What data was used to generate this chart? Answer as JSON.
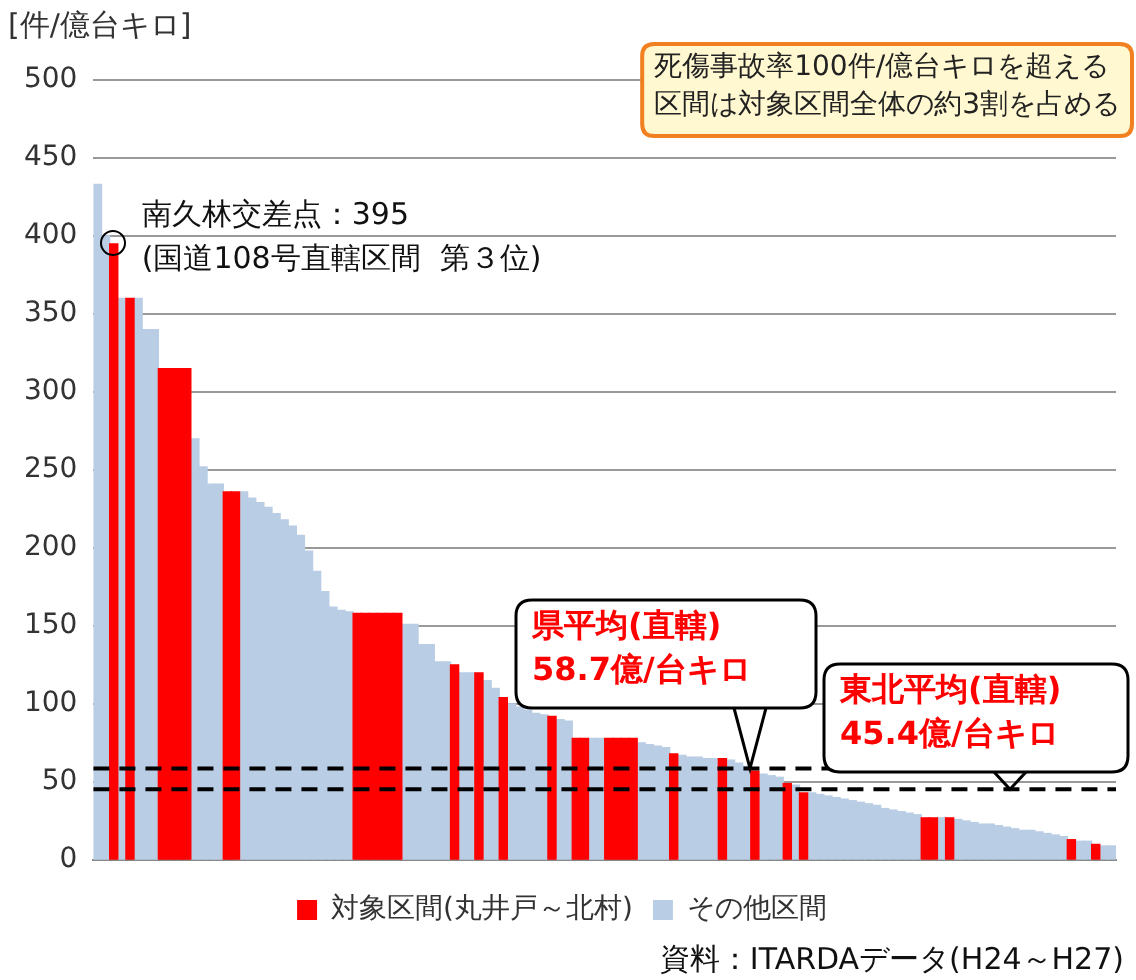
{
  "chart_data": {
    "type": "bar",
    "stacked": true,
    "ylabel": "[件/億台キロ]",
    "categories": [
      null,
      null,
      null,
      null,
      null,
      null,
      null,
      null,
      null,
      null,
      null,
      null,
      null,
      null,
      null,
      null,
      null,
      null,
      null,
      null,
      null,
      null,
      null,
      null,
      null,
      null,
      null,
      null,
      null,
      null,
      null,
      null,
      null,
      null,
      null,
      null,
      null,
      null,
      null,
      null,
      null,
      null,
      null,
      null,
      null,
      null,
      null,
      null,
      null,
      null,
      null,
      null,
      null,
      null,
      null,
      null,
      null,
      null,
      null,
      null,
      null,
      null,
      null,
      null,
      null,
      null,
      null,
      null,
      null,
      null,
      null,
      null,
      null,
      null,
      null,
      null,
      null,
      null,
      null,
      null,
      null,
      null,
      null,
      null,
      null,
      null,
      null,
      null,
      null,
      null,
      null,
      null,
      null,
      null,
      null,
      null,
      null,
      null,
      null,
      null,
      null,
      null,
      null,
      null,
      null,
      null,
      null,
      null,
      null,
      null,
      null,
      null,
      null,
      null,
      null,
      null,
      null,
      null,
      null,
      null,
      null,
      null,
      null,
      null,
      null,
      null
    ],
    "series": [
      {
        "name": "対象区間(丸井戸～北村)",
        "color": "#ff0000",
        "values": [
          null,
          null,
          395,
          null,
          360,
          null,
          null,
          null,
          315,
          315,
          315,
          315,
          null,
          null,
          null,
          null,
          236,
          236,
          null,
          null,
          null,
          null,
          null,
          null,
          null,
          null,
          null,
          null,
          null,
          null,
          null,
          null,
          158,
          158,
          158,
          158,
          158,
          158,
          null,
          null,
          null,
          null,
          null,
          null,
          125,
          null,
          null,
          120,
          null,
          null,
          104,
          null,
          null,
          null,
          null,
          null,
          92,
          null,
          null,
          78,
          78,
          null,
          null,
          78,
          78,
          78,
          78,
          null,
          null,
          null,
          null,
          68,
          null,
          null,
          null,
          null,
          null,
          65,
          null,
          null,
          null,
          57,
          null,
          null,
          null,
          49,
          null,
          43,
          null,
          null,
          null,
          null,
          null,
          null,
          null,
          null,
          null,
          null,
          null,
          null,
          null,
          null,
          27,
          27,
          null,
          27,
          null,
          null,
          null,
          null,
          null,
          null,
          null,
          null,
          null,
          null,
          null,
          null,
          null,
          null,
          13,
          null,
          null,
          10,
          null,
          null
        ]
      },
      {
        "name": "その他区間",
        "color": "#b9cde4",
        "values": [
          433,
          400,
          null,
          360,
          null,
          360,
          340,
          340,
          null,
          null,
          null,
          null,
          270,
          252,
          241,
          241,
          null,
          null,
          236,
          232,
          229,
          226,
          222,
          218,
          214,
          208,
          198,
          185,
          172,
          162,
          160,
          159,
          null,
          null,
          null,
          null,
          null,
          null,
          151,
          151,
          138,
          138,
          127,
          127,
          null,
          120,
          120,
          null,
          115,
          110,
          null,
          100,
          98,
          96,
          94,
          93,
          null,
          90,
          89,
          null,
          null,
          78,
          78,
          null,
          null,
          null,
          null,
          75,
          74,
          73,
          72,
          null,
          67,
          66,
          66,
          65,
          65,
          null,
          64,
          62,
          60,
          null,
          55,
          54,
          53,
          null,
          48,
          null,
          43,
          42,
          41,
          40,
          39,
          38,
          37,
          36,
          35,
          33,
          32,
          31,
          30,
          29,
          null,
          null,
          27,
          null,
          26,
          25,
          24,
          23,
          23,
          22,
          21,
          20,
          19,
          19,
          18,
          17,
          16,
          15,
          null,
          12,
          12,
          null,
          9,
          9
        ]
      }
    ],
    "ylim": [
      0,
      500
    ],
    "yticks": [
      0,
      50,
      100,
      150,
      200,
      250,
      300,
      350,
      400,
      450,
      500
    ],
    "grid": "y",
    "tick_labels": "y",
    "legend": "bottom",
    "ref_lines": [
      {
        "axis": "y",
        "value": 58.7,
        "label": "県平均(直轄)\n58.7億/台キロ",
        "line_style": "dashed",
        "color": "#000000"
      },
      {
        "axis": "y",
        "value": 45.4,
        "label": "東北平均(直轄)\n45.4億/台キロ",
        "line_style": "dashed",
        "color": "#000000"
      }
    ],
    "annotations": [
      "死傷事故率100件/億台キロを超える区間は対象区間全体の約3割を占める",
      "南久林交差点：395\n(国道108号直轄区間  第３位)",
      "資料：ITARDAデータ(H24～H27)"
    ]
  }
}
